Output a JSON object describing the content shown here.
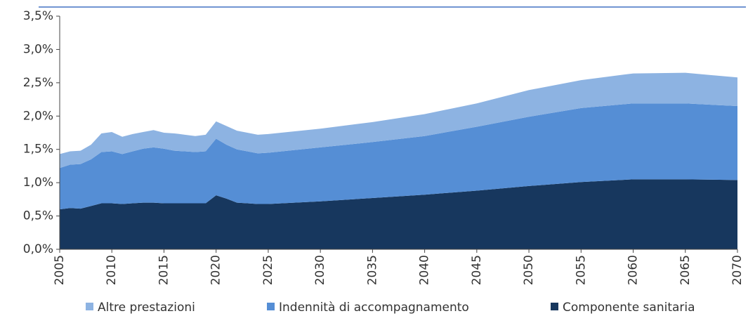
{
  "chart_data": {
    "type": "stacked_area",
    "x": [
      2005,
      2006,
      2007,
      2008,
      2009,
      2010,
      2011,
      2012,
      2013,
      2014,
      2015,
      2016,
      2017,
      2018,
      2019,
      2020,
      2021,
      2022,
      2023,
      2024,
      2025,
      2030,
      2035,
      2040,
      2045,
      2050,
      2055,
      2060,
      2065,
      2070
    ],
    "series": [
      {
        "name": "Altre prestazioni",
        "color": "#8db3e2",
        "values": [
          0.21,
          0.2,
          0.2,
          0.22,
          0.28,
          0.29,
          0.26,
          0.26,
          0.25,
          0.26,
          0.24,
          0.26,
          0.25,
          0.24,
          0.25,
          0.26,
          0.28,
          0.28,
          0.28,
          0.28,
          0.28,
          0.28,
          0.3,
          0.33,
          0.35,
          0.4,
          0.42,
          0.45,
          0.46,
          0.43
        ]
      },
      {
        "name": "Indennità di accompagnamento",
        "color": "#558ed5",
        "values": [
          0.62,
          0.65,
          0.67,
          0.7,
          0.77,
          0.78,
          0.75,
          0.78,
          0.81,
          0.83,
          0.82,
          0.79,
          0.78,
          0.77,
          0.78,
          0.85,
          0.81,
          0.8,
          0.78,
          0.76,
          0.77,
          0.81,
          0.84,
          0.88,
          0.96,
          1.04,
          1.11,
          1.14,
          1.14,
          1.11
        ]
      },
      {
        "name": "Componente sanitaria",
        "color": "#17375e",
        "values": [
          0.6,
          0.62,
          0.61,
          0.65,
          0.69,
          0.69,
          0.68,
          0.69,
          0.7,
          0.7,
          0.69,
          0.69,
          0.69,
          0.69,
          0.69,
          0.81,
          0.76,
          0.7,
          0.69,
          0.68,
          0.68,
          0.72,
          0.77,
          0.82,
          0.88,
          0.95,
          1.01,
          1.05,
          1.05,
          1.04
        ]
      }
    ],
    "xlim": [
      2005,
      2070
    ],
    "xticks": [
      2005,
      2010,
      2015,
      2020,
      2025,
      2030,
      2035,
      2040,
      2045,
      2050,
      2055,
      2060,
      2065,
      2070
    ],
    "ylim": [
      0,
      3.5
    ],
    "yticks": [
      {
        "value": 0,
        "label": "0,0%"
      },
      {
        "value": 0.5,
        "label": "0,5%"
      },
      {
        "value": 1,
        "label": "1,0%"
      },
      {
        "value": 1.5,
        "label": "1,5%"
      },
      {
        "value": 2,
        "label": "2,0%"
      },
      {
        "value": 2.5,
        "label": "2,5%"
      },
      {
        "value": 3,
        "label": "3,0%"
      },
      {
        "value": 3.5,
        "label": "3,5%"
      }
    ],
    "legend": "bottom"
  }
}
